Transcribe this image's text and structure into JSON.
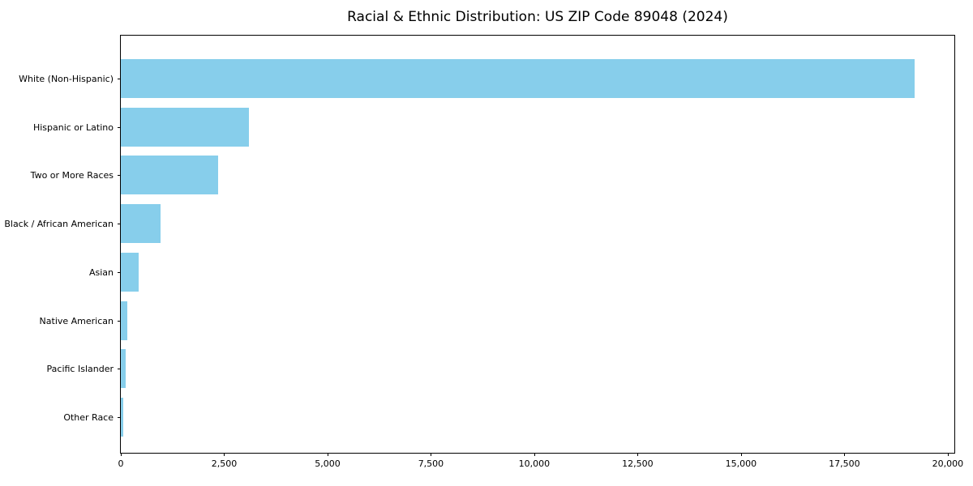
{
  "page": {
    "background_color": "#ffffff",
    "text_color": "#000000"
  },
  "chart_data": {
    "type": "bar",
    "orientation": "horizontal",
    "title": "Racial & Ethnic Distribution: US ZIP Code 89048 (2024)",
    "categories": [
      "White (Non-Hispanic)",
      "Hispanic or Latino",
      "Two or More Races",
      "Black / African American",
      "Asian",
      "Native American",
      "Pacific Islander",
      "Other Race"
    ],
    "values": [
      19200,
      3100,
      2350,
      960,
      440,
      160,
      115,
      55
    ],
    "xlabel": "",
    "ylabel": "",
    "xlim": [
      0,
      20160
    ],
    "x_ticks": [
      0,
      2500,
      5000,
      7500,
      10000,
      12500,
      15000,
      17500,
      20000
    ],
    "x_tick_labels": [
      "0",
      "2,500",
      "5,000",
      "7,500",
      "10,000",
      "12,500",
      "15,000",
      "17,500",
      "20,000"
    ],
    "bar_color": "#87CEEB",
    "spine_color": "#000000",
    "grid": false,
    "legend": null
  }
}
